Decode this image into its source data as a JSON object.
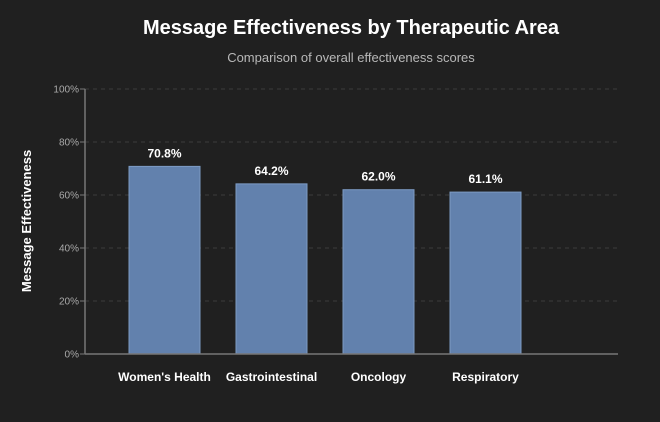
{
  "chart_data": {
    "type": "bar",
    "title": "Message Effectiveness by Therapeutic Area",
    "subtitle": "Comparison of overall effectiveness scores",
    "xlabel": "",
    "ylabel": "Message Effectiveness",
    "categories": [
      "Women's Health",
      "Gastrointestinal",
      "Oncology",
      "Respiratory"
    ],
    "values": [
      70.8,
      64.2,
      62.0,
      61.1
    ],
    "value_labels": [
      "70.8%",
      "64.2%",
      "62.0%",
      "61.1%"
    ],
    "ylim": [
      0,
      100
    ],
    "yticks": [
      0,
      20,
      40,
      60,
      80,
      100
    ],
    "ytick_labels": [
      "0%",
      "20%",
      "40%",
      "60%",
      "80%",
      "100%"
    ],
    "grid": true,
    "legend": "none",
    "colors": {
      "background": "#202020",
      "bar": "#6281ad",
      "bar_edge": "#7d9bc4",
      "grid": "#3d3d3d",
      "axis": "#777777"
    }
  }
}
